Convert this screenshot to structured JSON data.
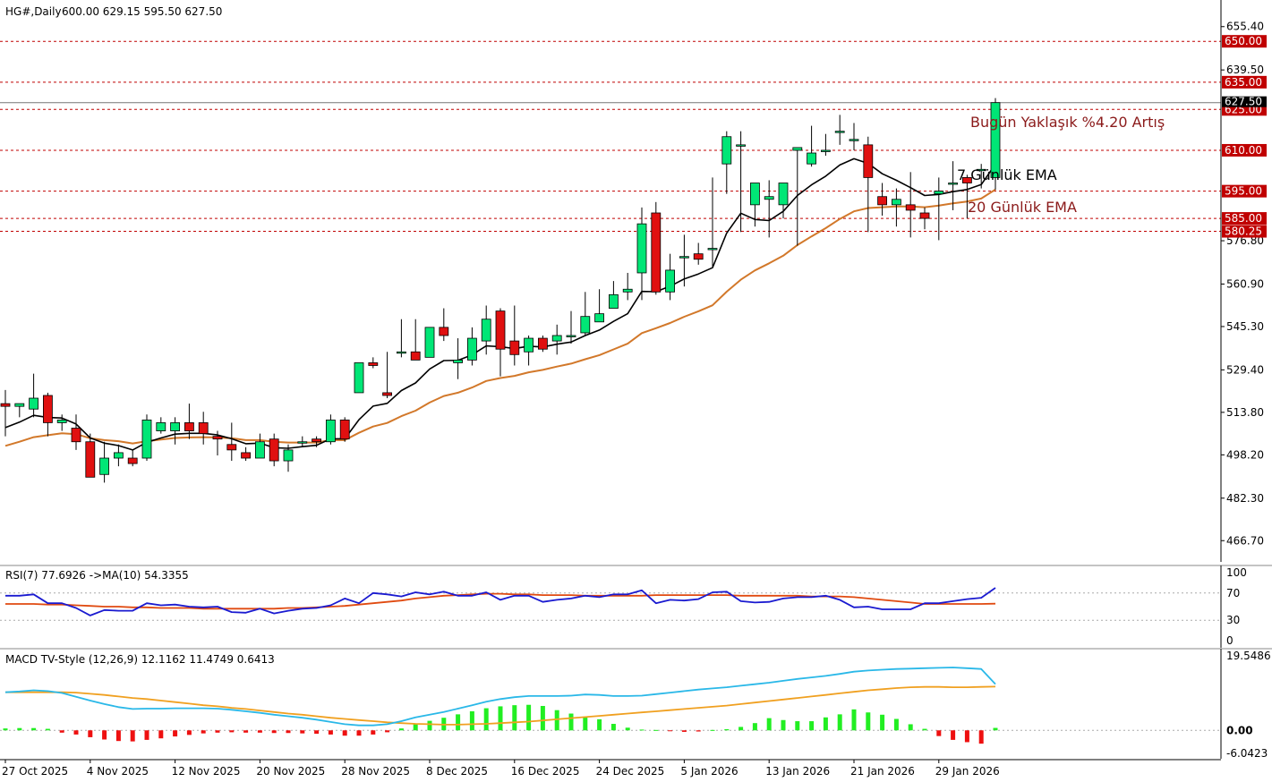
{
  "header": {
    "symbol": "HG#,Daily",
    "ohlc": "600.00 629.15 595.50 627.50"
  },
  "colors": {
    "bull": "#00e676",
    "bear": "#e01010",
    "ema7": "#000000",
    "ema20": "#d2782a",
    "level": "#c00000",
    "rsi": "#1a1ad0",
    "rsi_ma": "#e04a10",
    "macd": "#2ab8e8",
    "signal": "#f0a020",
    "hist_pos": "#22ee22",
    "hist_neg": "#ee1010",
    "last_price": "#777777"
  },
  "chart_data": [
    {
      "type": "candlestick",
      "title": "HG#,Daily",
      "ylim": [
        458.9,
        663.2
      ],
      "y_ticks": [
        "655.40",
        "639.50",
        "576.80",
        "560.90",
        "545.30",
        "529.40",
        "513.80",
        "498.20",
        "482.30",
        "466.70"
      ],
      "x_labels": [
        "27 Oct 2025",
        "4 Nov 2025",
        "12 Nov 2025",
        "20 Nov 2025",
        "28 Nov 2025",
        "8 Dec 2025",
        "16 Dec 2025",
        "24 Dec 2025",
        "5 Jan 2026",
        "13 Jan 2026",
        "21 Jan 2026",
        "29 Jan 2026"
      ],
      "x_label_bars": [
        0,
        6,
        12,
        18,
        24,
        30,
        36,
        42,
        48,
        54,
        60,
        66
      ],
      "last_price": "627.50",
      "levels": [
        {
          "label": "650.00",
          "value": 650.0
        },
        {
          "label": "635.00",
          "value": 635.0
        },
        {
          "label": "625.00",
          "value": 625.0
        },
        {
          "label": "610.00",
          "value": 610.0
        },
        {
          "label": "595.00",
          "value": 595.0
        },
        {
          "label": "585.00",
          "value": 585.0
        },
        {
          "label": "580.25",
          "value": 580.25
        }
      ],
      "annotations": {
        "gain": "Bugün Yaklaşık %4.20  Artış",
        "ema7": "7 Günlük EMA",
        "ema20": "20 Günlük EMA"
      },
      "candles": [
        [
          517,
          522,
          505,
          516
        ],
        [
          516,
          517,
          512,
          517
        ],
        [
          515,
          528,
          512,
          519
        ],
        [
          520,
          521,
          505,
          510
        ],
        [
          510,
          513,
          507,
          511
        ],
        [
          508,
          513,
          500,
          503
        ],
        [
          503,
          506,
          490,
          490
        ],
        [
          491,
          503,
          488,
          497
        ],
        [
          497,
          502,
          494,
          499
        ],
        [
          497,
          500,
          494,
          495
        ],
        [
          497,
          513,
          496,
          511
        ],
        [
          507,
          512,
          506,
          510
        ],
        [
          507,
          512,
          502,
          510
        ],
        [
          510,
          517,
          504,
          507
        ],
        [
          510,
          514,
          502,
          506
        ],
        [
          505,
          507,
          498,
          504
        ],
        [
          502,
          510,
          496,
          500
        ],
        [
          499,
          501,
          496,
          497
        ],
        [
          497,
          506,
          497,
          503
        ],
        [
          504,
          506,
          494,
          496
        ],
        [
          496,
          502,
          492,
          500
        ],
        [
          503,
          505,
          501,
          503
        ],
        [
          504,
          505,
          501,
          503
        ],
        [
          503,
          513,
          502,
          511
        ],
        [
          511,
          512,
          503,
          504
        ],
        [
          521,
          532,
          521,
          532
        ],
        [
          532,
          534,
          530,
          531
        ],
        [
          521,
          536,
          519,
          520
        ],
        [
          536,
          548,
          534,
          536
        ],
        [
          536,
          548,
          534,
          533
        ],
        [
          534,
          545,
          534,
          545
        ],
        [
          545,
          552,
          540,
          542
        ],
        [
          532,
          541,
          526,
          533
        ],
        [
          533,
          545,
          531,
          541
        ],
        [
          540,
          553,
          535,
          548
        ],
        [
          551,
          552,
          527,
          537
        ],
        [
          540,
          553,
          531,
          535
        ],
        [
          536,
          542,
          531,
          541
        ],
        [
          541,
          542,
          536,
          537
        ],
        [
          540,
          546,
          535,
          542
        ],
        [
          542,
          551,
          539,
          542
        ],
        [
          543,
          558,
          542,
          549
        ],
        [
          547,
          559,
          548,
          550
        ],
        [
          552,
          562,
          552,
          557
        ],
        [
          558,
          565,
          555,
          559
        ],
        [
          565,
          589,
          555,
          583
        ],
        [
          587,
          591,
          557,
          558
        ],
        [
          558,
          572,
          555,
          566
        ],
        [
          571,
          579,
          560,
          571
        ],
        [
          572,
          576,
          568,
          570
        ],
        [
          574,
          600,
          567,
          574
        ],
        [
          605,
          617,
          594,
          615
        ],
        [
          612,
          617,
          580,
          612
        ],
        [
          590,
          596,
          582,
          598
        ],
        [
          592,
          599,
          578,
          593
        ],
        [
          590,
          598,
          585,
          598
        ],
        [
          610,
          610,
          575,
          611
        ],
        [
          605,
          619,
          604,
          609
        ],
        [
          610,
          616,
          608,
          610
        ],
        [
          617,
          623,
          612,
          617
        ],
        [
          614,
          620,
          610,
          614
        ],
        [
          612,
          615,
          580,
          600
        ],
        [
          593,
          598,
          586,
          590
        ],
        [
          590,
          596,
          582,
          592
        ],
        [
          590,
          602,
          578,
          588
        ],
        [
          587,
          589,
          581,
          585
        ],
        [
          594,
          600,
          577,
          595
        ],
        [
          598,
          606,
          588,
          598
        ],
        [
          600,
          601,
          585,
          598
        ],
        [
          603,
          605,
          596,
          603
        ],
        [
          600,
          629.15,
          595.5,
          627.5
        ]
      ],
      "ema7": [
        508.2,
        510.2,
        512.7,
        511.9,
        511.7,
        509.5,
        504.4,
        502.5,
        501.6,
        500.0,
        502.8,
        504.4,
        505.8,
        506.1,
        506.1,
        505.5,
        504.1,
        502.3,
        502.5,
        500.8,
        500.6,
        501.2,
        501.7,
        504.1,
        504.1,
        511.1,
        516.1,
        517.1,
        521.8,
        524.6,
        529.7,
        532.8,
        532.9,
        534.9,
        538.2,
        537.9,
        537.2,
        538.1,
        537.8,
        538.8,
        539.6,
        542.0,
        544.0,
        547.2,
        550.0,
        558.2,
        558.1,
        560.1,
        562.8,
        564.6,
        566.9,
        579.6,
        586.9,
        584.6,
        584.2,
        587.6,
        593.4,
        597.3,
        600.5,
        604.6,
        606.9,
        605.2,
        601.4,
        599.0,
        596.3,
        593.4,
        593.8,
        594.8,
        595.6,
        597.4,
        604.9
      ],
      "ema20": [
        501.5,
        503.0,
        504.7,
        505.4,
        506.1,
        505.8,
        504.3,
        503.6,
        503.2,
        502.4,
        503.2,
        503.8,
        504.4,
        504.6,
        504.7,
        504.6,
        504.3,
        503.6,
        503.6,
        503.0,
        502.7,
        502.7,
        502.7,
        503.6,
        503.6,
        506.3,
        508.6,
        509.9,
        512.4,
        514.4,
        517.4,
        519.8,
        521.0,
        522.9,
        525.3,
        526.4,
        527.2,
        528.5,
        529.4,
        530.6,
        531.7,
        533.3,
        534.8,
        536.9,
        539.0,
        542.9,
        544.7,
        546.6,
        548.9,
        550.9,
        553.1,
        558.1,
        562.5,
        565.9,
        568.5,
        571.3,
        575.2,
        578.4,
        581.4,
        584.8,
        587.6,
        588.8,
        589.1,
        589.4,
        589.4,
        589.1,
        589.7,
        590.5,
        591.2,
        592.3,
        595.6
      ]
    },
    {
      "type": "line",
      "title": "RSI(7) 77.6926  ->MA(10) 54.3355",
      "ylim": [
        0,
        100
      ],
      "y_ticks": [
        "100",
        "70",
        "30",
        "0"
      ],
      "y_tick_values": [
        100,
        70,
        30,
        0
      ],
      "dotted_levels": [
        70,
        30
      ],
      "series": [
        {
          "name": "RSI(7)",
          "values": [
            66,
            66,
            68,
            55,
            55,
            48,
            37,
            45,
            44,
            44,
            55,
            52,
            53,
            50,
            49,
            50,
            42,
            41,
            47,
            40,
            44,
            47,
            48,
            52,
            62,
            55,
            70,
            68,
            65,
            71,
            68,
            72,
            66,
            66,
            71,
            60,
            66,
            66,
            57,
            60,
            62,
            66,
            64,
            68,
            68,
            74,
            55,
            60,
            59,
            61,
            71,
            72,
            58,
            56,
            57,
            62,
            64,
            64,
            66,
            60,
            49,
            50,
            46,
            46,
            46,
            55,
            55,
            58,
            61,
            63,
            77.69
          ]
        },
        {
          "name": "MA(10)",
          "values": [
            54,
            54,
            54,
            53,
            53,
            52,
            51,
            50,
            50,
            49,
            49,
            48,
            48,
            48,
            47,
            47,
            47,
            47,
            47,
            47,
            48,
            48,
            49,
            50,
            51,
            53,
            55,
            57,
            59,
            62,
            64,
            66,
            67,
            68,
            69,
            69,
            68,
            68,
            67,
            67,
            67,
            66,
            66,
            66,
            66,
            66,
            67,
            67,
            67,
            67,
            67,
            67,
            66,
            66,
            66,
            66,
            66,
            65,
            65,
            65,
            64,
            62,
            60,
            58,
            56,
            54,
            54,
            54,
            54,
            54,
            54.34
          ]
        }
      ]
    },
    {
      "type": "bar",
      "title": "MACD TV-Style (12,26,9) 12.1162 11.4749 0.6413",
      "ylim": [
        -6.0423,
        19.5486
      ],
      "y_ticks": [
        "19.5486",
        "0.00",
        "-6.0423"
      ],
      "y_tick_values": [
        19.5486,
        0,
        -6.0423
      ],
      "series": [
        {
          "name": "MACD",
          "values": [
            10.0,
            10.2,
            10.5,
            10.3,
            9.8,
            8.8,
            7.8,
            6.9,
            6.1,
            5.6,
            5.7,
            5.7,
            5.8,
            5.8,
            5.8,
            5.7,
            5.4,
            5.0,
            4.6,
            4.1,
            3.7,
            3.3,
            2.8,
            2.2,
            1.6,
            1.3,
            1.3,
            1.6,
            2.4,
            3.4,
            4.1,
            4.8,
            5.7,
            6.6,
            7.5,
            8.2,
            8.7,
            9.0,
            9.0,
            9.0,
            9.1,
            9.4,
            9.3,
            9.0,
            9.0,
            9.1,
            9.5,
            9.9,
            10.3,
            10.7,
            11.0,
            11.3,
            11.7,
            12.1,
            12.5,
            13.0,
            13.5,
            13.9,
            14.3,
            14.8,
            15.4,
            15.7,
            15.9,
            16.1,
            16.2,
            16.3,
            16.4,
            16.5,
            16.3,
            16.1,
            12.12
          ]
        },
        {
          "name": "Signal",
          "values": [
            10.0,
            10.0,
            10.0,
            10.0,
            10.0,
            9.9,
            9.6,
            9.3,
            8.9,
            8.5,
            8.2,
            7.8,
            7.4,
            7.0,
            6.6,
            6.3,
            5.9,
            5.6,
            5.2,
            4.8,
            4.4,
            4.1,
            3.7,
            3.3,
            3.0,
            2.7,
            2.4,
            2.1,
            1.9,
            1.7,
            1.6,
            1.5,
            1.5,
            1.6,
            1.7,
            1.9,
            2.1,
            2.3,
            2.6,
            2.9,
            3.2,
            3.5,
            3.8,
            4.1,
            4.4,
            4.7,
            5.0,
            5.3,
            5.6,
            5.9,
            6.2,
            6.5,
            6.9,
            7.3,
            7.7,
            8.1,
            8.5,
            8.9,
            9.3,
            9.7,
            10.1,
            10.5,
            10.8,
            11.1,
            11.3,
            11.4,
            11.4,
            11.3,
            11.3,
            11.4,
            11.47
          ]
        },
        {
          "name": "Histogram",
          "values": [
            0.5,
            0.6,
            0.6,
            0.4,
            -0.6,
            -1.1,
            -1.8,
            -2.4,
            -2.8,
            -2.9,
            -2.5,
            -2.1,
            -1.6,
            -1.2,
            -0.8,
            -0.6,
            -0.5,
            -0.6,
            -0.6,
            -0.7,
            -0.7,
            -0.8,
            -0.9,
            -1.1,
            -1.4,
            -1.4,
            -1.1,
            -0.5,
            0.5,
            1.7,
            2.5,
            3.3,
            4.2,
            5.0,
            5.8,
            6.3,
            6.6,
            6.7,
            6.4,
            5.3,
            4.4,
            3.6,
            2.9,
            1.7,
            0.7,
            0.2,
            0.1,
            -0.2,
            -0.4,
            -0.3,
            0.1,
            0.3,
            0.9,
            1.9,
            3.2,
            2.7,
            2.4,
            2.4,
            3.4,
            4.2,
            5.5,
            4.7,
            4.1,
            3.0,
            1.6,
            0.4,
            -1.5,
            -2.5,
            -3.1,
            -3.5,
            0.64
          ]
        }
      ]
    }
  ]
}
